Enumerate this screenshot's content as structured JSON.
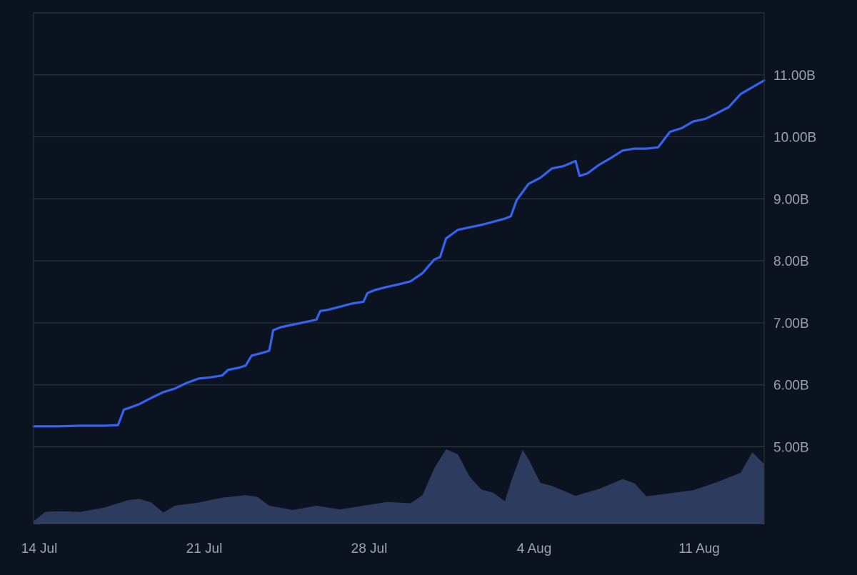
{
  "colors": {
    "background": "#0c1320",
    "grid": "#2b3442",
    "axis_text": "#9aa3b2",
    "line": "#3563f0",
    "volume": "#2f3d62"
  },
  "chart_data": {
    "type": "line",
    "title": "",
    "xlabel": "",
    "ylabel": "",
    "x_ticks": [
      {
        "label": "14 Jul",
        "date": "2025-07-14"
      },
      {
        "label": "21 Jul",
        "date": "2025-07-21"
      },
      {
        "label": "28 Jul",
        "date": "2025-07-28"
      },
      {
        "label": "4 Aug",
        "date": "2025-08-04"
      },
      {
        "label": "11 Aug",
        "date": "2025-08-11"
      }
    ],
    "xlim": [
      "2025-07-14",
      "2025-08-14"
    ],
    "y_ticks": [
      {
        "label": "5.00B",
        "value": 5.0
      },
      {
        "label": "6.00B",
        "value": 6.0
      },
      {
        "label": "7.00B",
        "value": 7.0
      },
      {
        "label": "8.00B",
        "value": 8.0
      },
      {
        "label": "9.00B",
        "value": 9.0
      },
      {
        "label": "10.00B",
        "value": 10.0
      },
      {
        "label": "11.00B",
        "value": 11.0
      }
    ],
    "ylim": [
      3.75,
      12.0
    ],
    "grid": true,
    "series": [
      {
        "type": "line",
        "points": [
          [
            "2025-07-14",
            5.33
          ],
          [
            "2025-07-15",
            5.33
          ],
          [
            "2025-07-16",
            5.34
          ],
          [
            "2025-07-17",
            5.34
          ],
          [
            "2025-07-17T14:00",
            5.35
          ],
          [
            "2025-07-17T20:00",
            5.6
          ],
          [
            "2025-07-18",
            5.62
          ],
          [
            "2025-07-18T12:00",
            5.69
          ],
          [
            "2025-07-19",
            5.79
          ],
          [
            "2025-07-19T12:00",
            5.88
          ],
          [
            "2025-07-20",
            5.94
          ],
          [
            "2025-07-20T12:00",
            6.03
          ],
          [
            "2025-07-21",
            6.1
          ],
          [
            "2025-07-21T12:00",
            6.12
          ],
          [
            "2025-07-22",
            6.15
          ],
          [
            "2025-07-22T06:00",
            6.24
          ],
          [
            "2025-07-22T18:00",
            6.28
          ],
          [
            "2025-07-23",
            6.31
          ],
          [
            "2025-07-23T06:00",
            6.47
          ],
          [
            "2025-07-23T18:00",
            6.52
          ],
          [
            "2025-07-24",
            6.55
          ],
          [
            "2025-07-24T04:00",
            6.88
          ],
          [
            "2025-07-24T12:00",
            6.93
          ],
          [
            "2025-07-25",
            6.97
          ],
          [
            "2025-07-25T12:00",
            7.01
          ],
          [
            "2025-07-26",
            7.05
          ],
          [
            "2025-07-26T04:00",
            7.19
          ],
          [
            "2025-07-26T12:00",
            7.21
          ],
          [
            "2025-07-27",
            7.26
          ],
          [
            "2025-07-27T12:00",
            7.31
          ],
          [
            "2025-07-28",
            7.34
          ],
          [
            "2025-07-28T04:00",
            7.48
          ],
          [
            "2025-07-28T12:00",
            7.53
          ],
          [
            "2025-07-29",
            7.58
          ],
          [
            "2025-07-29T12:00",
            7.62
          ],
          [
            "2025-07-30",
            7.67
          ],
          [
            "2025-07-30T12:00",
            7.8
          ],
          [
            "2025-07-31",
            8.02
          ],
          [
            "2025-07-31T06:00",
            8.06
          ],
          [
            "2025-07-31T12:00",
            8.36
          ],
          [
            "2025-08-01",
            8.5
          ],
          [
            "2025-08-01T12:00",
            8.54
          ],
          [
            "2025-08-02",
            8.58
          ],
          [
            "2025-08-02T12:00",
            8.63
          ],
          [
            "2025-08-03",
            8.68
          ],
          [
            "2025-08-03T06:00",
            8.72
          ],
          [
            "2025-08-03T12:00",
            8.98
          ],
          [
            "2025-08-04",
            9.24
          ],
          [
            "2025-08-04T12:00",
            9.34
          ],
          [
            "2025-08-05",
            9.49
          ],
          [
            "2025-08-05T12:00",
            9.53
          ],
          [
            "2025-08-06",
            9.61
          ],
          [
            "2025-08-06T04:00",
            9.37
          ],
          [
            "2025-08-06T12:00",
            9.41
          ],
          [
            "2025-08-07",
            9.55
          ],
          [
            "2025-08-07T12:00",
            9.66
          ],
          [
            "2025-08-08",
            9.78
          ],
          [
            "2025-08-08T12:00",
            9.81
          ],
          [
            "2025-08-09",
            9.81
          ],
          [
            "2025-08-09T12:00",
            9.83
          ],
          [
            "2025-08-10",
            10.08
          ],
          [
            "2025-08-10T12:00",
            10.14
          ],
          [
            "2025-08-11",
            10.25
          ],
          [
            "2025-08-11T12:00",
            10.29
          ],
          [
            "2025-08-12",
            10.38
          ],
          [
            "2025-08-12T12:00",
            10.48
          ],
          [
            "2025-08-13",
            10.69
          ],
          [
            "2025-08-13T12:00",
            10.8
          ],
          [
            "2025-08-14",
            10.91
          ]
        ]
      },
      {
        "type": "area",
        "points": [
          [
            "2025-07-14",
            3.8
          ],
          [
            "2025-07-14T12:00",
            3.95
          ],
          [
            "2025-07-15",
            3.96
          ],
          [
            "2025-07-16",
            3.95
          ],
          [
            "2025-07-17",
            4.02
          ],
          [
            "2025-07-18",
            4.14
          ],
          [
            "2025-07-18T12:00",
            4.16
          ],
          [
            "2025-07-19",
            4.1
          ],
          [
            "2025-07-19T12:00",
            3.94
          ],
          [
            "2025-07-20",
            4.05
          ],
          [
            "2025-07-21",
            4.1
          ],
          [
            "2025-07-22",
            4.18
          ],
          [
            "2025-07-23",
            4.22
          ],
          [
            "2025-07-23T12:00",
            4.19
          ],
          [
            "2025-07-24",
            4.05
          ],
          [
            "2025-07-25",
            3.98
          ],
          [
            "2025-07-26",
            4.05
          ],
          [
            "2025-07-27",
            3.99
          ],
          [
            "2025-07-28",
            4.05
          ],
          [
            "2025-07-29",
            4.11
          ],
          [
            "2025-07-30",
            4.09
          ],
          [
            "2025-07-30T12:00",
            4.22
          ],
          [
            "2025-07-31",
            4.65
          ],
          [
            "2025-07-31T12:00",
            4.96
          ],
          [
            "2025-08-01",
            4.88
          ],
          [
            "2025-08-01T12:00",
            4.52
          ],
          [
            "2025-08-02",
            4.31
          ],
          [
            "2025-08-02T12:00",
            4.26
          ],
          [
            "2025-08-03",
            4.12
          ],
          [
            "2025-08-03T06:00",
            4.43
          ],
          [
            "2025-08-03T18:00",
            4.95
          ],
          [
            "2025-08-04",
            4.8
          ],
          [
            "2025-08-04T12:00",
            4.42
          ],
          [
            "2025-08-05",
            4.37
          ],
          [
            "2025-08-06",
            4.21
          ],
          [
            "2025-08-07",
            4.32
          ],
          [
            "2025-08-08",
            4.48
          ],
          [
            "2025-08-08T12:00",
            4.41
          ],
          [
            "2025-08-09",
            4.2
          ],
          [
            "2025-08-10",
            4.25
          ],
          [
            "2025-08-11",
            4.3
          ],
          [
            "2025-08-12",
            4.43
          ],
          [
            "2025-08-13",
            4.58
          ],
          [
            "2025-08-13T12:00",
            4.91
          ],
          [
            "2025-08-14",
            4.72
          ]
        ]
      }
    ]
  }
}
